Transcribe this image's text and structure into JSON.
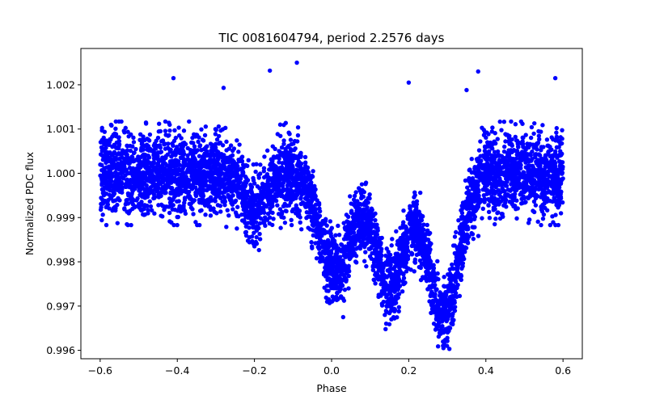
{
  "chart_data": {
    "type": "scatter",
    "title": "TIC 0081604794, period 2.2576 days",
    "xlabel": "Phase",
    "ylabel": "Normalized PDC flux",
    "xlim": [
      -0.65,
      0.65
    ],
    "ylim": [
      0.99581,
      1.00282
    ],
    "x_ticks": [
      {
        "value": -0.6,
        "label": "−0.6"
      },
      {
        "value": -0.4,
        "label": "−0.4"
      },
      {
        "value": -0.2,
        "label": "−0.2"
      },
      {
        "value": 0.0,
        "label": "0.0"
      },
      {
        "value": 0.2,
        "label": "0.2"
      },
      {
        "value": 0.4,
        "label": "0.4"
      },
      {
        "value": 0.6,
        "label": "0.6"
      }
    ],
    "y_ticks": [
      {
        "value": 0.996,
        "label": "0.996"
      },
      {
        "value": 0.997,
        "label": "0.997"
      },
      {
        "value": 0.998,
        "label": "0.998"
      },
      {
        "value": 0.999,
        "label": "0.999"
      },
      {
        "value": 1.0,
        "label": "1.000"
      },
      {
        "value": 1.001,
        "label": "1.001"
      },
      {
        "value": 1.002,
        "label": "1.002"
      }
    ],
    "grid": false,
    "marker_color": "#0000ff",
    "phase_range": [
      -0.6,
      0.6
    ],
    "baseline_flux": 1.0,
    "scatter_sigma": 0.00045,
    "dips": [
      {
        "phase": -0.2,
        "depth": 0.0008,
        "width": 0.03
      },
      {
        "phase": 0.01,
        "depth": 0.0022,
        "width": 0.04
      },
      {
        "phase": 0.15,
        "depth": 0.0025,
        "width": 0.04
      },
      {
        "phase": 0.29,
        "depth": 0.0032,
        "width": 0.04
      }
    ],
    "outliers": [
      {
        "x": -0.41,
        "y": 1.00215
      },
      {
        "x": -0.16,
        "y": 1.00232
      },
      {
        "x": -0.09,
        "y": 1.0025
      },
      {
        "x": 0.2,
        "y": 1.00205
      },
      {
        "x": 0.38,
        "y": 1.0023
      },
      {
        "x": 0.58,
        "y": 1.00215
      },
      {
        "x": -0.28,
        "y": 1.00193
      },
      {
        "x": 0.35,
        "y": 1.00188
      },
      {
        "x": 0.03,
        "y": 0.99675
      },
      {
        "x": 0.14,
        "y": 0.99648
      },
      {
        "x": 0.29,
        "y": 0.99605
      },
      {
        "x": 0.3,
        "y": 0.99628
      },
      {
        "x": -0.2,
        "y": 0.99835
      }
    ]
  }
}
